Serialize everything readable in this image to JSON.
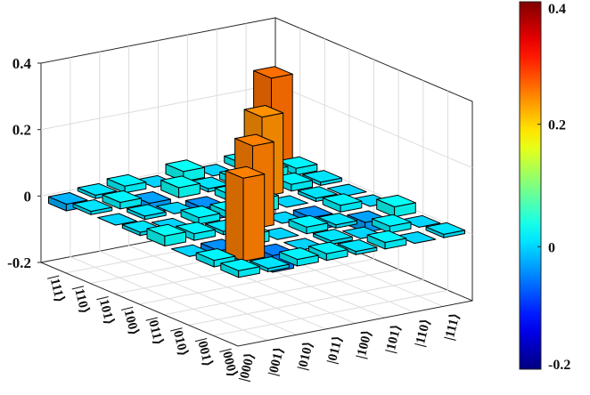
{
  "chart_data": {
    "type": "bar3d",
    "title": "",
    "x_tick_labels": [
      "|000⟩",
      "|001⟩",
      "|010⟩",
      "|011⟩",
      "|100⟩",
      "|101⟩",
      "|110⟩",
      "|111⟩"
    ],
    "y_tick_labels": [
      "|000⟩",
      "|001⟩",
      "|010⟩",
      "|011⟩",
      "|100⟩",
      "|101⟩",
      "|110⟩",
      "|111⟩"
    ],
    "zlim": [
      -0.2,
      0.4
    ],
    "z_ticks": [
      -0.2,
      0,
      0.2,
      0.4
    ],
    "z_tick_labels": [
      "-0.2",
      "0",
      "0.2",
      "0.4"
    ],
    "colorbar": {
      "range": [
        -0.2,
        0.4
      ],
      "tick_values": [
        -0.2,
        0,
        0.2,
        0.4
      ],
      "tick_labels": [
        "-0.2",
        "0",
        "0.2",
        "0.4"
      ],
      "colormap": "jet"
    },
    "grid": true,
    "values": [
      [
        0.02,
        0.02,
        0.0,
        0.03,
        0.01,
        0.0,
        0.01,
        -0.02
      ],
      [
        0.01,
        0.25,
        -0.04,
        0.02,
        0.0,
        0.01,
        0.02,
        0.01
      ],
      [
        0.02,
        -0.05,
        0.03,
        0.01,
        0.02,
        0.0,
        -0.03,
        0.02
      ],
      [
        0.02,
        0.0,
        0.0,
        0.25,
        0.02,
        -0.04,
        0.03,
        0.0
      ],
      [
        0.01,
        0.01,
        0.02,
        0.0,
        0.04,
        0.02,
        0.01,
        0.03
      ],
      [
        0.02,
        0.0,
        0.01,
        -0.04,
        0.0,
        0.24,
        0.02,
        0.0
      ],
      [
        0.0,
        0.02,
        -0.03,
        0.02,
        0.01,
        0.02,
        0.03,
        0.02
      ],
      [
        0.01,
        0.0,
        0.03,
        0.0,
        0.0,
        0.01,
        0.02,
        0.26
      ]
    ]
  }
}
